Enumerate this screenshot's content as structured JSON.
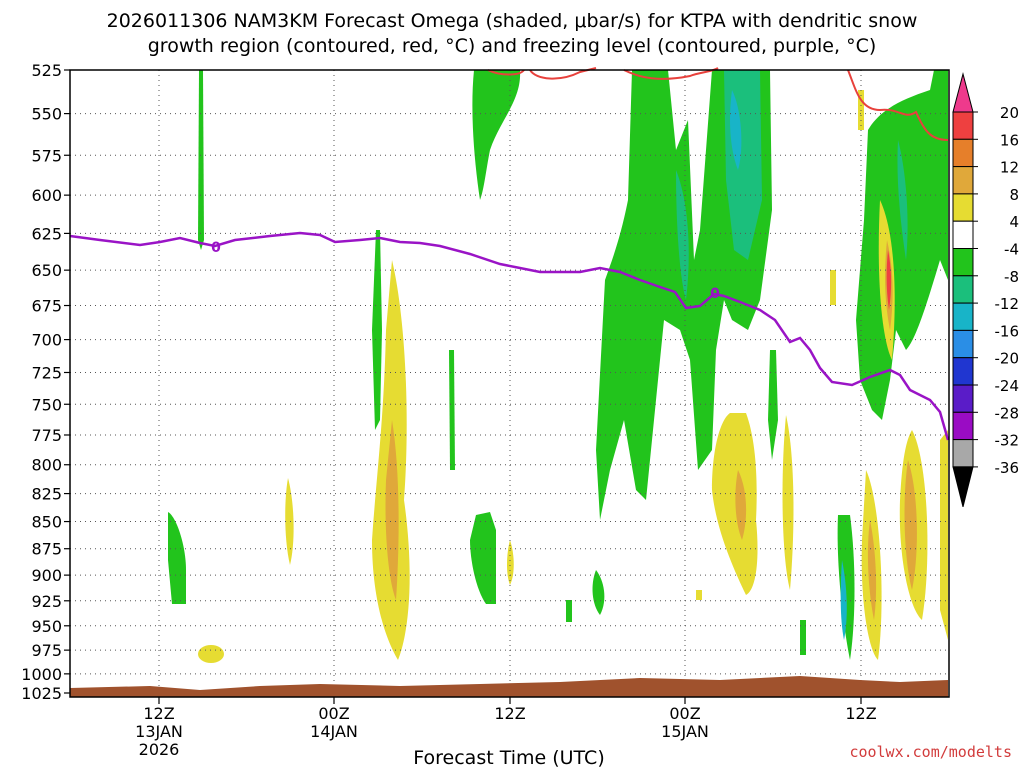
{
  "title": {
    "line1": "2026011306 NAM3KM Forecast Omega (shaded, μbar/s) for KTPA with dendritic snow",
    "line2": "growth region (contoured, red, °C) and freezing level (contoured, purple, °C)"
  },
  "xlabel": "Forecast Time (UTC)",
  "credit": "coolwx.com/modelts",
  "colors": {
    "ground": "#a0522d",
    "freezing_line": "#9a14c6",
    "dgz_line": "#e8413c",
    "grid": "#555555"
  },
  "chart_data": {
    "type": "heatmap",
    "y_axis": {
      "unit": "hPa",
      "ticks": [
        "525",
        "550",
        "575",
        "600",
        "625",
        "650",
        "675",
        "700",
        "725",
        "750",
        "775",
        "800",
        "825",
        "850",
        "875",
        "900",
        "925",
        "950",
        "975",
        "1000",
        "1025"
      ]
    },
    "x_axis": {
      "ticks": [
        {
          "hour": "12Z",
          "date": "13JAN",
          "year": "2026"
        },
        {
          "hour": "00Z",
          "date": "14JAN",
          "year": ""
        },
        {
          "hour": "12Z",
          "date": "",
          "year": ""
        },
        {
          "hour": "00Z",
          "date": "15JAN",
          "year": ""
        },
        {
          "hour": "12Z",
          "date": "",
          "year": ""
        }
      ]
    },
    "colorbar": {
      "labels": [
        "20",
        "16",
        "12",
        "8",
        "4",
        "-4",
        "-8",
        "-12",
        "-16",
        "-20",
        "-24",
        "-28",
        "-32",
        "-36"
      ],
      "bins": [
        {
          "from": 20,
          "to": 24,
          "color": "#ee3a8c"
        },
        {
          "from": 16,
          "to": 20,
          "color": "#ee4040"
        },
        {
          "from": 12,
          "to": 16,
          "color": "#e67f2a"
        },
        {
          "from": 8,
          "to": 12,
          "color": "#e0a83a"
        },
        {
          "from": 4,
          "to": 8,
          "color": "#e6dc32"
        },
        {
          "from": -4,
          "to": 4,
          "color": "#ffffff"
        },
        {
          "from": -8,
          "to": -4,
          "color": "#22c41c"
        },
        {
          "from": -12,
          "to": -8,
          "color": "#1bbf7c"
        },
        {
          "from": -16,
          "to": -12,
          "color": "#18b4c8"
        },
        {
          "from": -20,
          "to": -16,
          "color": "#2a8ee6"
        },
        {
          "from": -24,
          "to": -20,
          "color": "#2036d0"
        },
        {
          "from": -28,
          "to": -24,
          "color": "#5a1cc8"
        },
        {
          "from": -32,
          "to": -28,
          "color": "#9a0cc4"
        },
        {
          "from": -36,
          "to": -32,
          "color": "#a8a8a8"
        }
      ]
    },
    "contour_labels": {
      "freezing_level": [
        "0",
        "0"
      ]
    }
  }
}
